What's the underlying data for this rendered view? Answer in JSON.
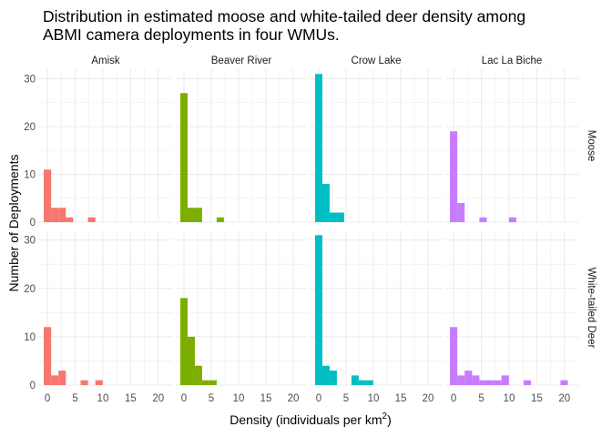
{
  "chart_data": {
    "type": "bar",
    "title_lines": [
      "Distribution in estimated moose and white-tailed deer density among",
      "ABMI camera deployments in four WMUs."
    ],
    "xlabel": "Density (individuals per km",
    "xlabel_superscript": "2",
    "xlabel_suffix": ")",
    "ylabel": "Number of Deployments",
    "columns": [
      "Amisk",
      "Beaver River",
      "Crow Lake",
      "Lac La Biche"
    ],
    "rows": [
      "Moose",
      "White-tailed Deer"
    ],
    "x_ticks": [
      0,
      5,
      10,
      15,
      20
    ],
    "y_ticks": [
      0,
      10,
      20,
      30
    ],
    "xlim": [
      -1.5,
      22.5
    ],
    "ylim": [
      0,
      32
    ],
    "bin_width": 1.33,
    "bin_start": -0.67,
    "colors": {
      "Amisk": "#F8766D",
      "Beaver River": "#7CAE00",
      "Crow Lake": "#00BFC4",
      "Lac La Biche": "#C77CFF",
      "panel_background": "#ffffff",
      "grid": "#ebebeb"
    },
    "series": [
      {
        "column": "Amisk",
        "row": "Moose",
        "values": [
          11,
          3,
          3,
          1,
          0,
          0,
          1
        ]
      },
      {
        "column": "Beaver River",
        "row": "Moose",
        "values": [
          27,
          3,
          3,
          0,
          0,
          1
        ]
      },
      {
        "column": "Crow Lake",
        "row": "Moose",
        "values": [
          31,
          8,
          2,
          2
        ]
      },
      {
        "column": "Lac La Biche",
        "row": "Moose",
        "values": [
          19,
          4,
          0,
          0,
          1,
          0,
          0,
          0,
          1
        ]
      },
      {
        "column": "Amisk",
        "row": "White-tailed Deer",
        "values": [
          12,
          2,
          3,
          0,
          0,
          1,
          0,
          1
        ]
      },
      {
        "column": "Beaver River",
        "row": "White-tailed Deer",
        "values": [
          18,
          10,
          4,
          1,
          1
        ]
      },
      {
        "column": "Crow Lake",
        "row": "White-tailed Deer",
        "values": [
          31,
          4,
          3,
          0,
          0,
          2,
          1,
          1
        ]
      },
      {
        "column": "Lac La Biche",
        "row": "White-tailed Deer",
        "values": [
          12,
          2,
          3,
          2,
          1,
          1,
          1,
          2,
          0,
          0,
          1,
          0,
          0,
          0,
          0,
          1
        ]
      }
    ]
  }
}
